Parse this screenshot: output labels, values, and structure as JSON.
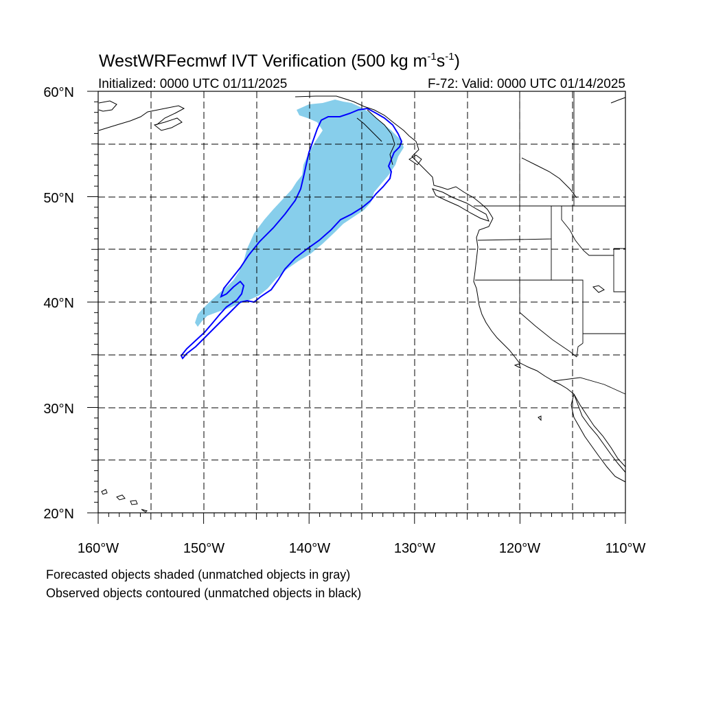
{
  "title": {
    "main": "WestWRFecmwf IVT Verification (500 kg m",
    "exp1": "-1",
    "mid": "s",
    "exp2": "-1",
    "close": ")"
  },
  "initialized": "Initialized: 0000 UTC 01/11/2025",
  "valid": "F-72: Valid: 0000 UTC 01/14/2025",
  "lat_labels": [
    "60°N",
    "50°N",
    "40°N",
    "30°N",
    "20°N"
  ],
  "lon_labels": [
    "160°W",
    "150°W",
    "140°W",
    "130°W",
    "120°W",
    "110°W"
  ],
  "footnote_1": "Forecasted objects shaded (unmatched objects in gray)",
  "footnote_2": "Observed objects contoured (unmatched objects in black)",
  "colors": {
    "forecast_fill": "#87ceeb",
    "observed_contour": "#0000ff",
    "grid": "#000000",
    "coastline": "#000000"
  },
  "map": {
    "lon_range": [
      -160,
      -110
    ],
    "lat_range": [
      20,
      60
    ],
    "gridlines": "dashed every 5 degrees"
  }
}
